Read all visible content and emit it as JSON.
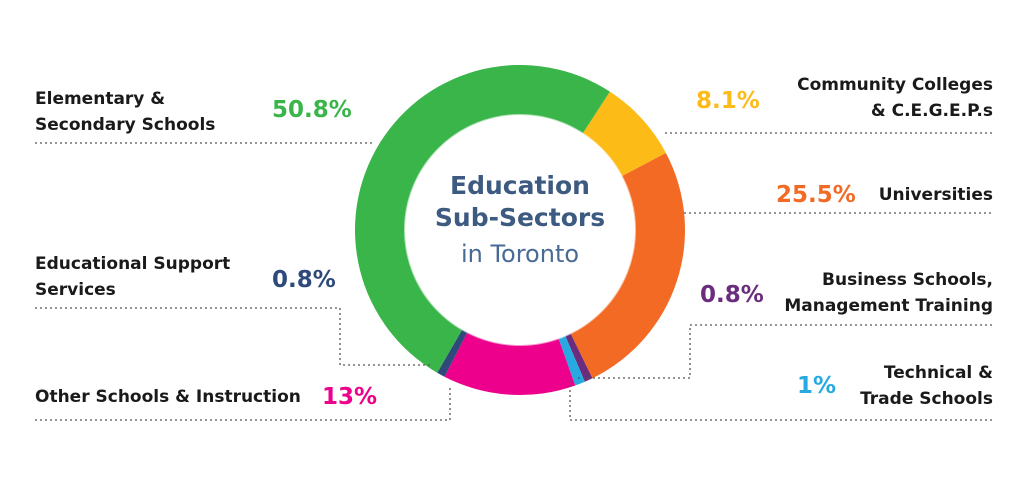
{
  "chart_data": {
    "type": "pie",
    "donut": true,
    "title": "Education Sub-Sectors",
    "subtitle": "in Toronto",
    "categories": [
      "Community Colleges\n& C.E.G.E.P.s",
      "Universities",
      "Business Schools,\nManagement Training",
      "Technical &\nTrade Schools",
      "Other Schools & Instruction",
      "Educational Support\nServices",
      "Elementary &\nSecondary Schools"
    ],
    "values": [
      8.1,
      25.5,
      0.8,
      1,
      13,
      0.8,
      50.8
    ],
    "value_labels": [
      "8.1%",
      "25.5%",
      "0.8%",
      "1%",
      "13%",
      "0.8%",
      "50.8%"
    ],
    "colors": [
      "#fdbb18",
      "#f26a24",
      "#6b2c7e",
      "#27a9e1",
      "#ec008c",
      "#2e4a7a",
      "#3ab54a"
    ]
  }
}
